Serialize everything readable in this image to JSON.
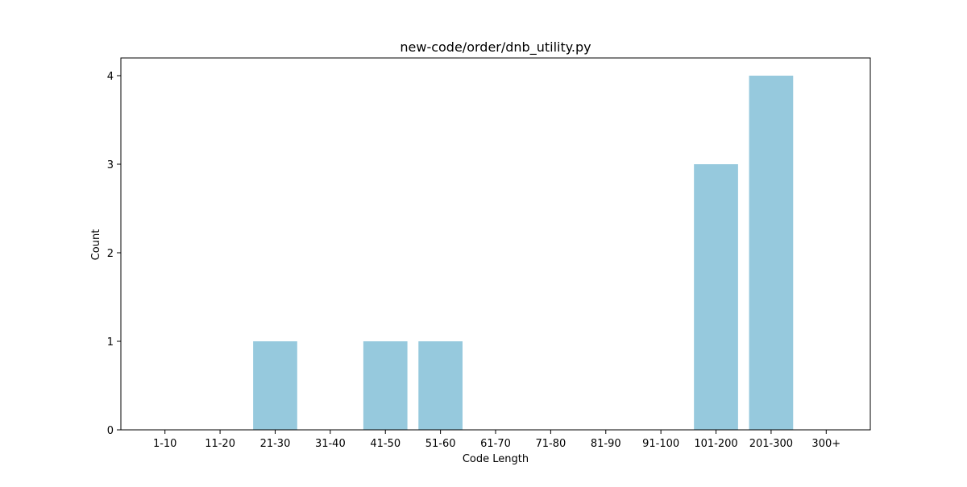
{
  "chart_data": {
    "type": "bar",
    "title": "new-code/order/dnb_utility.py",
    "xlabel": "Code Length",
    "ylabel": "Count",
    "categories": [
      "1-10",
      "11-20",
      "21-30",
      "31-40",
      "41-50",
      "51-60",
      "61-70",
      "71-80",
      "81-90",
      "91-100",
      "101-200",
      "201-300",
      "300+"
    ],
    "values": [
      0,
      0,
      1,
      0,
      1,
      1,
      0,
      0,
      0,
      0,
      3,
      4,
      0
    ],
    "yticks": [
      0,
      1,
      2,
      3,
      4
    ],
    "ylim": [
      0,
      4.2
    ],
    "grid": false,
    "legend": "none",
    "bar_color": "#96c9dd"
  }
}
